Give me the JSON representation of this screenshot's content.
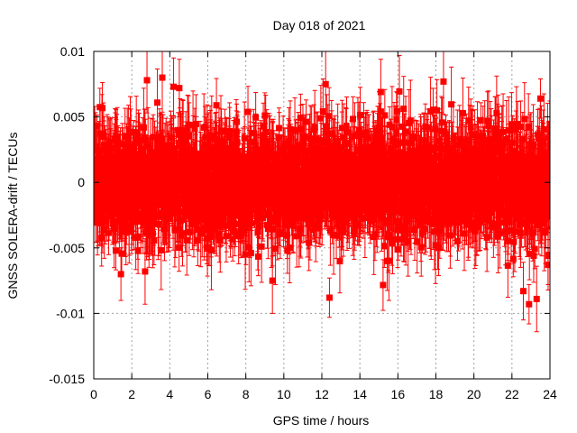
{
  "chart_data": {
    "type": "scatter",
    "title": "Day 018 of 2021",
    "xlabel": "GPS time / hours",
    "ylabel": "GNSS SOLERA-drift / TECUs",
    "xlim": [
      0,
      24
    ],
    "ylim": [
      -0.015,
      0.01
    ],
    "x_ticks": [
      0,
      2,
      4,
      6,
      8,
      10,
      12,
      14,
      16,
      18,
      20,
      22,
      24
    ],
    "x_tick_labels": [
      "0",
      "2",
      "4",
      "6",
      "8",
      "10",
      "12",
      "14",
      "16",
      "18",
      "20",
      "22",
      "24"
    ],
    "y_ticks": [
      -0.015,
      -0.01,
      -0.005,
      0,
      0.005,
      0.01
    ],
    "y_tick_labels": [
      "-0.015",
      "-0.01",
      "-0.005",
      "0",
      "0.005",
      "0.01"
    ],
    "grid": true,
    "legend": "none",
    "marker": "filled-square",
    "color": "#ff0000",
    "point_count": 2880,
    "sample_interval_hours": 0.008333,
    "y_center": 0.0,
    "y_spread_std": 0.002,
    "y_extremes": {
      "max": 0.008,
      "min": -0.0103
    },
    "error_bar_typical": 0.0022,
    "highlight_points": [
      {
        "x": 0.05,
        "y": 0.0043,
        "err": 0.0015
      },
      {
        "x": 2.8,
        "y": 0.0078,
        "err": 0.0025
      },
      {
        "x": 2.7,
        "y": -0.0068,
        "err": 0.0025
      },
      {
        "x": 4.2,
        "y": 0.0073,
        "err": 0.0022
      },
      {
        "x": 4.5,
        "y": 0.0072,
        "err": 0.0022
      },
      {
        "x": 9.4,
        "y": -0.0075,
        "err": 0.0025
      },
      {
        "x": 12.4,
        "y": -0.0088,
        "err": 0.0015
      },
      {
        "x": 12.2,
        "y": 0.0075,
        "err": 0.0025
      },
      {
        "x": 15.1,
        "y": 0.0069,
        "err": 0.0025
      },
      {
        "x": 18.4,
        "y": 0.0077,
        "err": 0.0025
      },
      {
        "x": 22.6,
        "y": -0.0083,
        "err": 0.0022
      },
      {
        "x": 22.9,
        "y": -0.0093,
        "err": 0.0015
      },
      {
        "x": 23.3,
        "y": -0.0089,
        "err": 0.0025
      },
      {
        "x": 23.5,
        "y": 0.0064,
        "err": 0.0015
      },
      {
        "x": 23.9,
        "y": -0.0056,
        "err": 0.0022
      }
    ]
  }
}
